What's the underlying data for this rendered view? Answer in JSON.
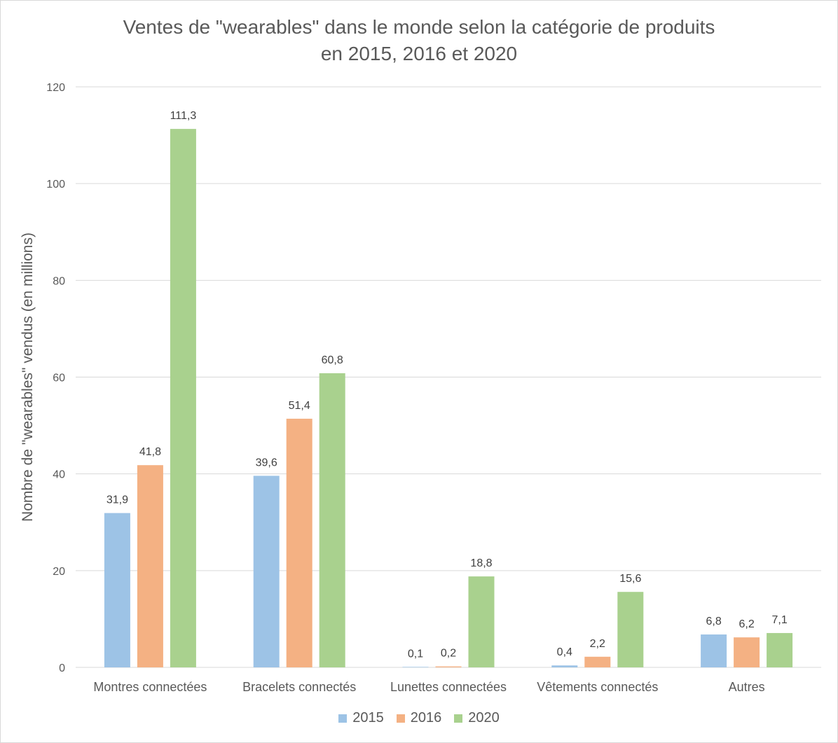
{
  "chart_data": {
    "type": "bar",
    "title_line1": "Ventes de \"wearables\" dans le monde selon la catégorie de produits",
    "title_line2": "en 2015, 2016 et 2020",
    "xlabel": "",
    "ylabel": "Nombre de \"wearables\" vendus (en millions)",
    "ylim": [
      0,
      120
    ],
    "yticks": [
      0,
      20,
      40,
      60,
      80,
      100,
      120
    ],
    "grid": true,
    "legend_position": "bottom",
    "categories": [
      "Montres connectées",
      "Bracelets connectés",
      "Lunettes connectées",
      "Vêtements connectés",
      "Autres"
    ],
    "series": [
      {
        "name": "2015",
        "color": "#9dc3e6",
        "values": [
          31.9,
          39.6,
          0.1,
          0.4,
          6.8
        ],
        "labels": [
          "31,9",
          "39,6",
          "0,1",
          "0,4",
          "6,8"
        ]
      },
      {
        "name": "2016",
        "color": "#f4b183",
        "values": [
          41.8,
          51.4,
          0.2,
          2.2,
          6.2
        ],
        "labels": [
          "41,8",
          "51,4",
          "0,2",
          "2,2",
          "6,2"
        ]
      },
      {
        "name": "2020",
        "color": "#a9d18e",
        "values": [
          111.3,
          60.8,
          18.8,
          15.6,
          7.1
        ],
        "labels": [
          "111,3",
          "60,8",
          "18,8",
          "15,6",
          "7,1"
        ]
      }
    ]
  }
}
